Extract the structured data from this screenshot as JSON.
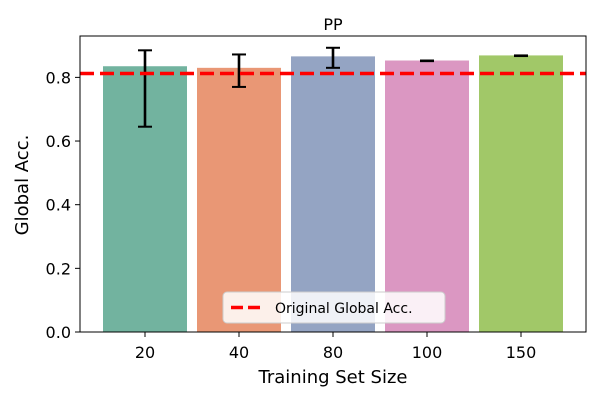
{
  "chart_data": {
    "type": "bar",
    "title": "PP",
    "xlabel": "Training Set Size",
    "ylabel": "Global Acc.",
    "categories": [
      "20",
      "40",
      "80",
      "100",
      "150"
    ],
    "values": [
      0.835,
      0.83,
      0.866,
      0.853,
      0.869
    ],
    "error_low": [
      0.645,
      0.77,
      0.83,
      0.851,
      0.867
    ],
    "error_high": [
      0.885,
      0.872,
      0.893,
      0.853,
      0.869
    ],
    "bar_colors": [
      "#72b39f",
      "#e99775",
      "#94a4c3",
      "#db97c2",
      "#a1c868"
    ],
    "error_bar_color": "#000000",
    "reference_line": {
      "value": 0.812,
      "label": "Original Global Acc.",
      "color": "#ff0000",
      "style": "dashed"
    },
    "ylim": [
      0,
      0.93
    ],
    "yticks": [
      0.0,
      0.2,
      0.4,
      0.6,
      0.8
    ],
    "ytick_labels": [
      "0.0",
      "0.2",
      "0.4",
      "0.6",
      "0.8"
    ],
    "grid": false,
    "legend_position": "bottom-center"
  }
}
